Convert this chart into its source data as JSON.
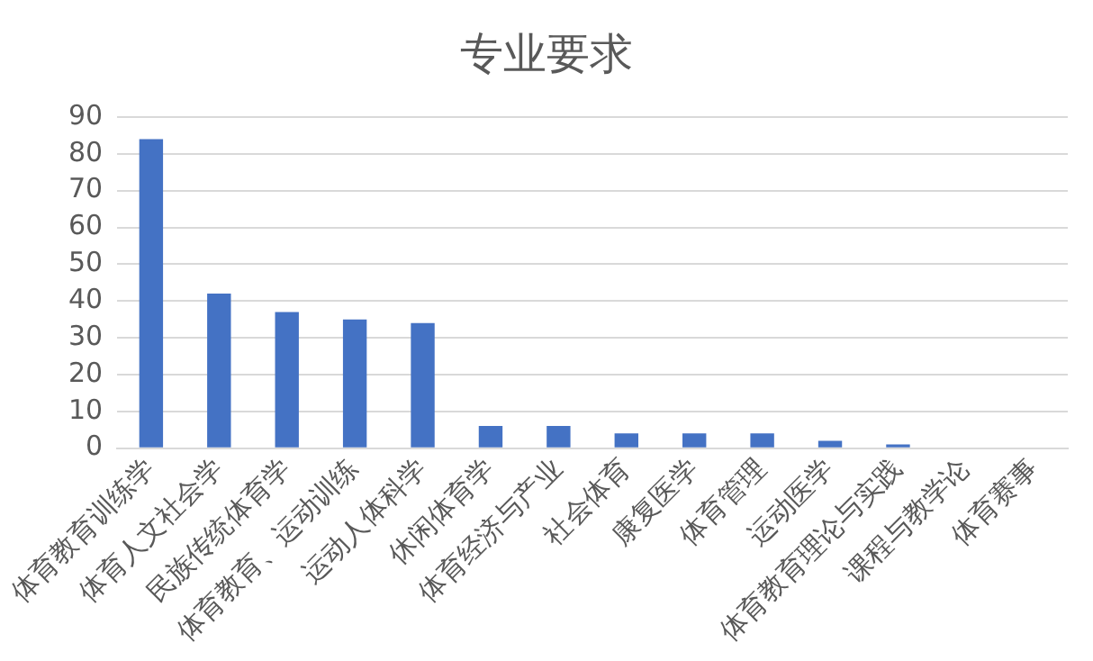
{
  "chart_data": {
    "type": "bar",
    "title": "专业要求",
    "categories": [
      "体育教育训练学",
      "体育人文社会学",
      "民族传统体育学",
      "体育教育、运动训练",
      "运动人体科学",
      "休闲体育学",
      "体育经济与产业",
      "社会体育",
      "康复医学",
      "体育管理",
      "运动医学",
      "体育教育理论与实践",
      "课程与教学论",
      "体育赛事"
    ],
    "values": [
      84,
      42,
      37,
      35,
      34,
      6,
      6,
      4,
      4,
      4,
      2,
      1,
      0,
      0
    ],
    "color": "#4472c4",
    "ylim": [
      0,
      90
    ],
    "yticks": [
      0,
      10,
      20,
      30,
      40,
      50,
      60,
      70,
      80,
      90
    ],
    "grid": "y"
  }
}
